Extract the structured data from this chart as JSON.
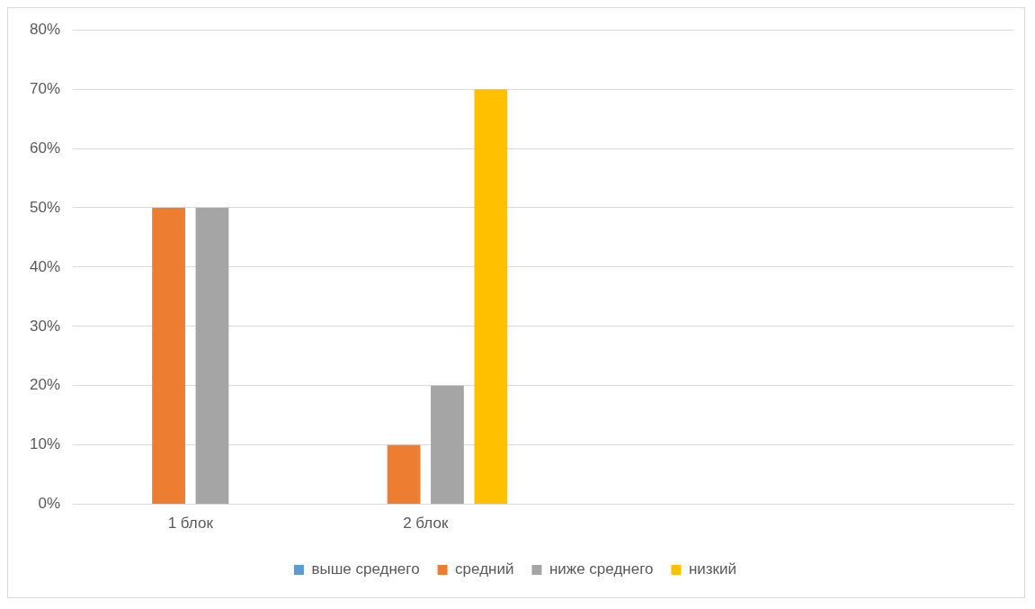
{
  "chart_data": {
    "type": "bar",
    "categories": [
      "1 блок",
      "2 блок",
      null,
      null
    ],
    "series": [
      {
        "name": "выше среднего",
        "color": "#5b9bd5",
        "values": [
          0,
          0,
          null,
          null
        ]
      },
      {
        "name": "средний",
        "color": "#ed7d31",
        "values": [
          50,
          10,
          null,
          null
        ]
      },
      {
        "name": "ниже среднего",
        "color": "#a5a5a5",
        "values": [
          50,
          20,
          null,
          null
        ]
      },
      {
        "name": "низкий",
        "color": "#ffc000",
        "values": [
          0,
          70,
          null,
          null
        ]
      }
    ],
    "ylim": [
      0,
      80
    ],
    "yticks": [
      {
        "value": 0,
        "label": "0%"
      },
      {
        "value": 10,
        "label": "10%"
      },
      {
        "value": 20,
        "label": "20%"
      },
      {
        "value": 30,
        "label": "30%"
      },
      {
        "value": 40,
        "label": "40%"
      },
      {
        "value": 50,
        "label": "50%"
      },
      {
        "value": 60,
        "label": "60%"
      },
      {
        "value": 70,
        "label": "70%"
      },
      {
        "value": 80,
        "label": "80%"
      }
    ],
    "grid": "y",
    "legend": "bottom"
  }
}
